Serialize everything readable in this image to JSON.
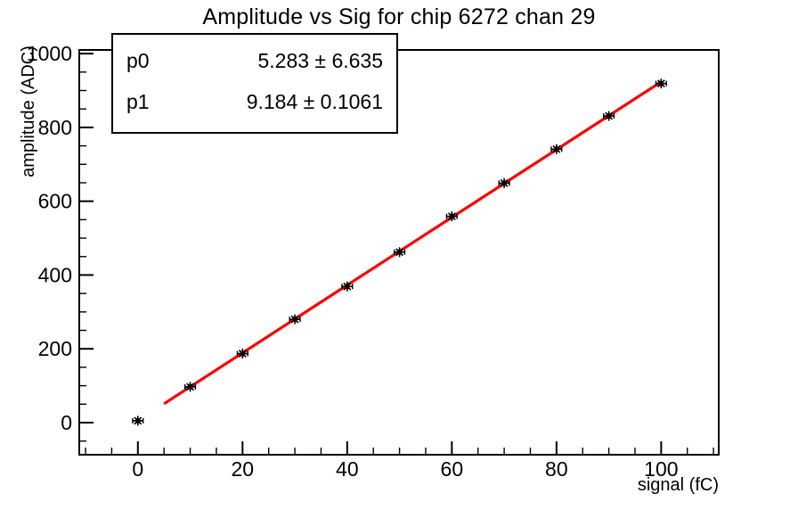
{
  "title": "Amplitude vs Sig for chip 6272 chan 29",
  "stats_box": {
    "rows": [
      {
        "param": "p0",
        "value": "5.283 ± 6.635"
      },
      {
        "param": "p1",
        "value": "9.184 ± 0.1061"
      }
    ]
  },
  "chart_data": {
    "type": "scatter",
    "title": "Amplitude vs Sig for chip 6272 chan 29",
    "xlabel": "signal (fC)",
    "ylabel": "amplitude (ADC)",
    "xlim": [
      -11.2,
      111
    ],
    "ylim": [
      -87,
      1010
    ],
    "x_major_ticks": [
      0,
      20,
      40,
      60,
      80,
      100
    ],
    "x_minor_step": 5,
    "y_major_ticks": [
      0,
      200,
      400,
      600,
      800,
      1000
    ],
    "y_minor_step": 50,
    "grid": false,
    "legend": "none",
    "points": {
      "x": [
        0,
        10,
        20,
        30,
        40,
        50,
        60,
        70,
        80,
        90,
        100
      ],
      "y": [
        5,
        97,
        187,
        280,
        369,
        462,
        559,
        649,
        741,
        831,
        919
      ],
      "xerr": 1.0,
      "yerr": 5,
      "marker": "asterisk",
      "color": "#000000"
    },
    "fit": {
      "type": "linear",
      "p0": 5.283,
      "p0_err": 6.635,
      "p1": 9.184,
      "p1_err": 0.1061,
      "x_range": [
        5,
        100
      ],
      "color": "#ff0000"
    }
  }
}
